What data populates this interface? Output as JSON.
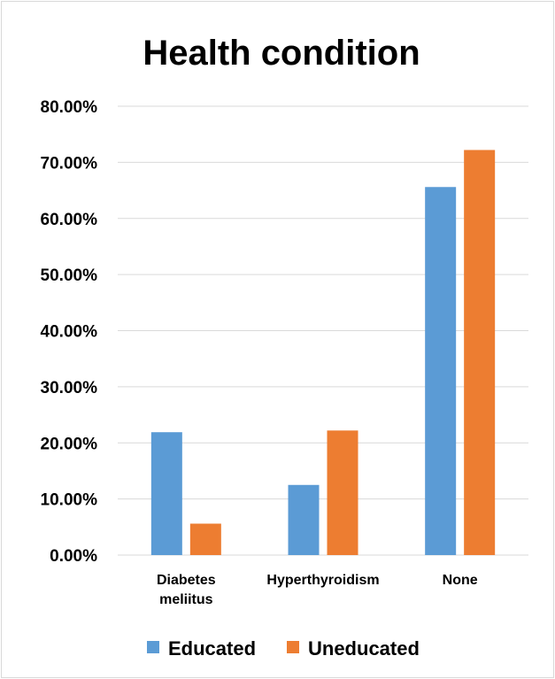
{
  "chart_data": {
    "type": "bar",
    "title": "Health condition",
    "xlabel": "",
    "ylabel": "",
    "categories": [
      "Diabetes meliitus",
      "Hyperthyroidism",
      "None"
    ],
    "category_lines": [
      [
        "Diabetes",
        "meliitus"
      ],
      [
        "Hyperthyroidism"
      ],
      [
        "None"
      ]
    ],
    "series": [
      {
        "name": "Educated",
        "values": [
          21.9,
          12.5,
          65.6
        ],
        "color": "#5b9bd5"
      },
      {
        "name": "Uneducated",
        "values": [
          5.6,
          22.2,
          72.2
        ],
        "color": "#ed7d31"
      }
    ],
    "ylim": [
      0,
      80
    ],
    "yticks": [
      0,
      10,
      20,
      30,
      40,
      50,
      60,
      70,
      80
    ],
    "ytick_labels": [
      "0.00%",
      "10.00%",
      "20.00%",
      "30.00%",
      "40.00%",
      "50.00%",
      "60.00%",
      "70.00%",
      "80.00%"
    ],
    "grid": true,
    "legend_position": "bottom",
    "colors": {
      "gridline": "#d9d9d9",
      "axis": "#d9d9d9"
    }
  }
}
